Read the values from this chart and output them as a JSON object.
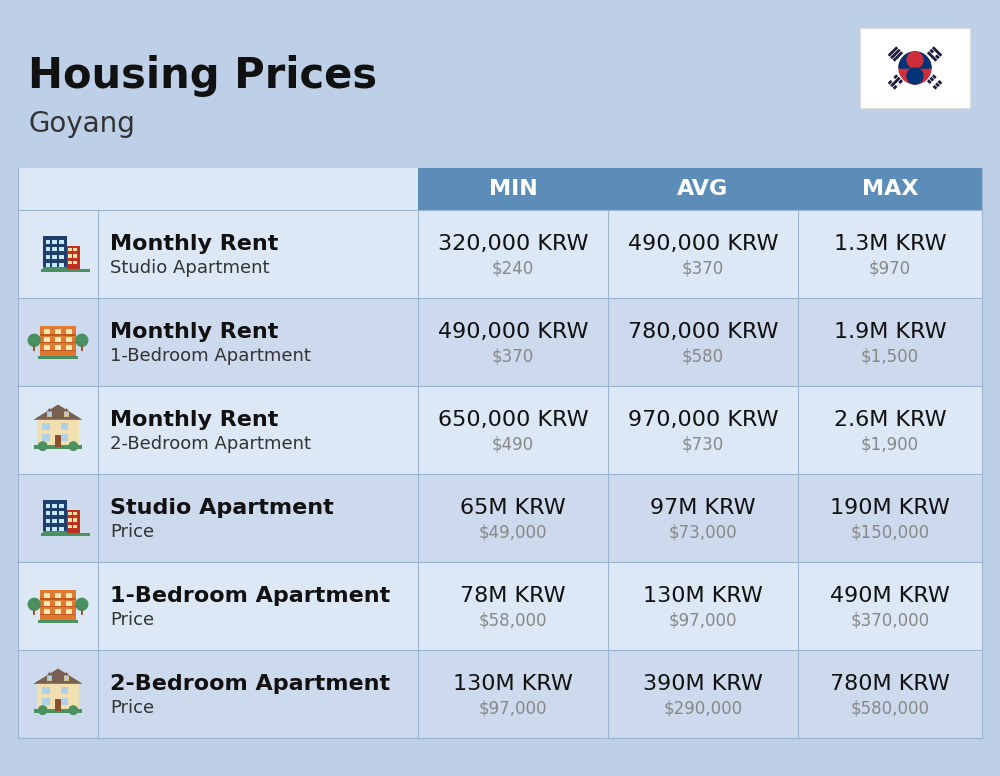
{
  "title": "Housing Prices",
  "subtitle": "Goyang",
  "background_color": "#bdd0e8",
  "header_bg_color": "#5b8db8",
  "header_text_color": "#ffffff",
  "row_bg_color_even": "#dce8f5",
  "row_bg_color_odd": "#cdd9ec",
  "col_divider_color": "#9ab5d0",
  "header_labels": [
    "MIN",
    "AVG",
    "MAX"
  ],
  "rows": [
    {
      "icon": "blue_office",
      "label_bold": "Monthly Rent",
      "label_sub": "Studio Apartment",
      "min_krw": "320,000 KRW",
      "min_usd": "$240",
      "avg_krw": "490,000 KRW",
      "avg_usd": "$370",
      "max_krw": "1.3M KRW",
      "max_usd": "$970"
    },
    {
      "icon": "orange_apartment",
      "label_bold": "Monthly Rent",
      "label_sub": "1-Bedroom Apartment",
      "min_krw": "490,000 KRW",
      "min_usd": "$370",
      "avg_krw": "780,000 KRW",
      "avg_usd": "$580",
      "max_krw": "1.9M KRW",
      "max_usd": "$1,500"
    },
    {
      "icon": "beige_house",
      "label_bold": "Monthly Rent",
      "label_sub": "2-Bedroom Apartment",
      "min_krw": "650,000 KRW",
      "min_usd": "$490",
      "avg_krw": "970,000 KRW",
      "avg_usd": "$730",
      "max_krw": "2.6M KRW",
      "max_usd": "$1,900"
    },
    {
      "icon": "blue_office",
      "label_bold": "Studio Apartment",
      "label_sub": "Price",
      "min_krw": "65M KRW",
      "min_usd": "$49,000",
      "avg_krw": "97M KRW",
      "avg_usd": "$73,000",
      "max_krw": "190M KRW",
      "max_usd": "$150,000"
    },
    {
      "icon": "orange_apartment",
      "label_bold": "1-Bedroom Apartment",
      "label_sub": "Price",
      "min_krw": "78M KRW",
      "min_usd": "$58,000",
      "avg_krw": "130M KRW",
      "avg_usd": "$97,000",
      "max_krw": "490M KRW",
      "max_usd": "$370,000"
    },
    {
      "icon": "beige_house",
      "label_bold": "2-Bedroom Apartment",
      "label_sub": "Price",
      "min_krw": "130M KRW",
      "min_usd": "$97,000",
      "avg_krw": "390M KRW",
      "avg_usd": "$290,000",
      "max_krw": "780M KRW",
      "max_usd": "$580,000"
    }
  ],
  "title_fontsize": 30,
  "subtitle_fontsize": 20,
  "header_fontsize": 16,
  "cell_main_fontsize": 16,
  "cell_sub_fontsize": 12
}
